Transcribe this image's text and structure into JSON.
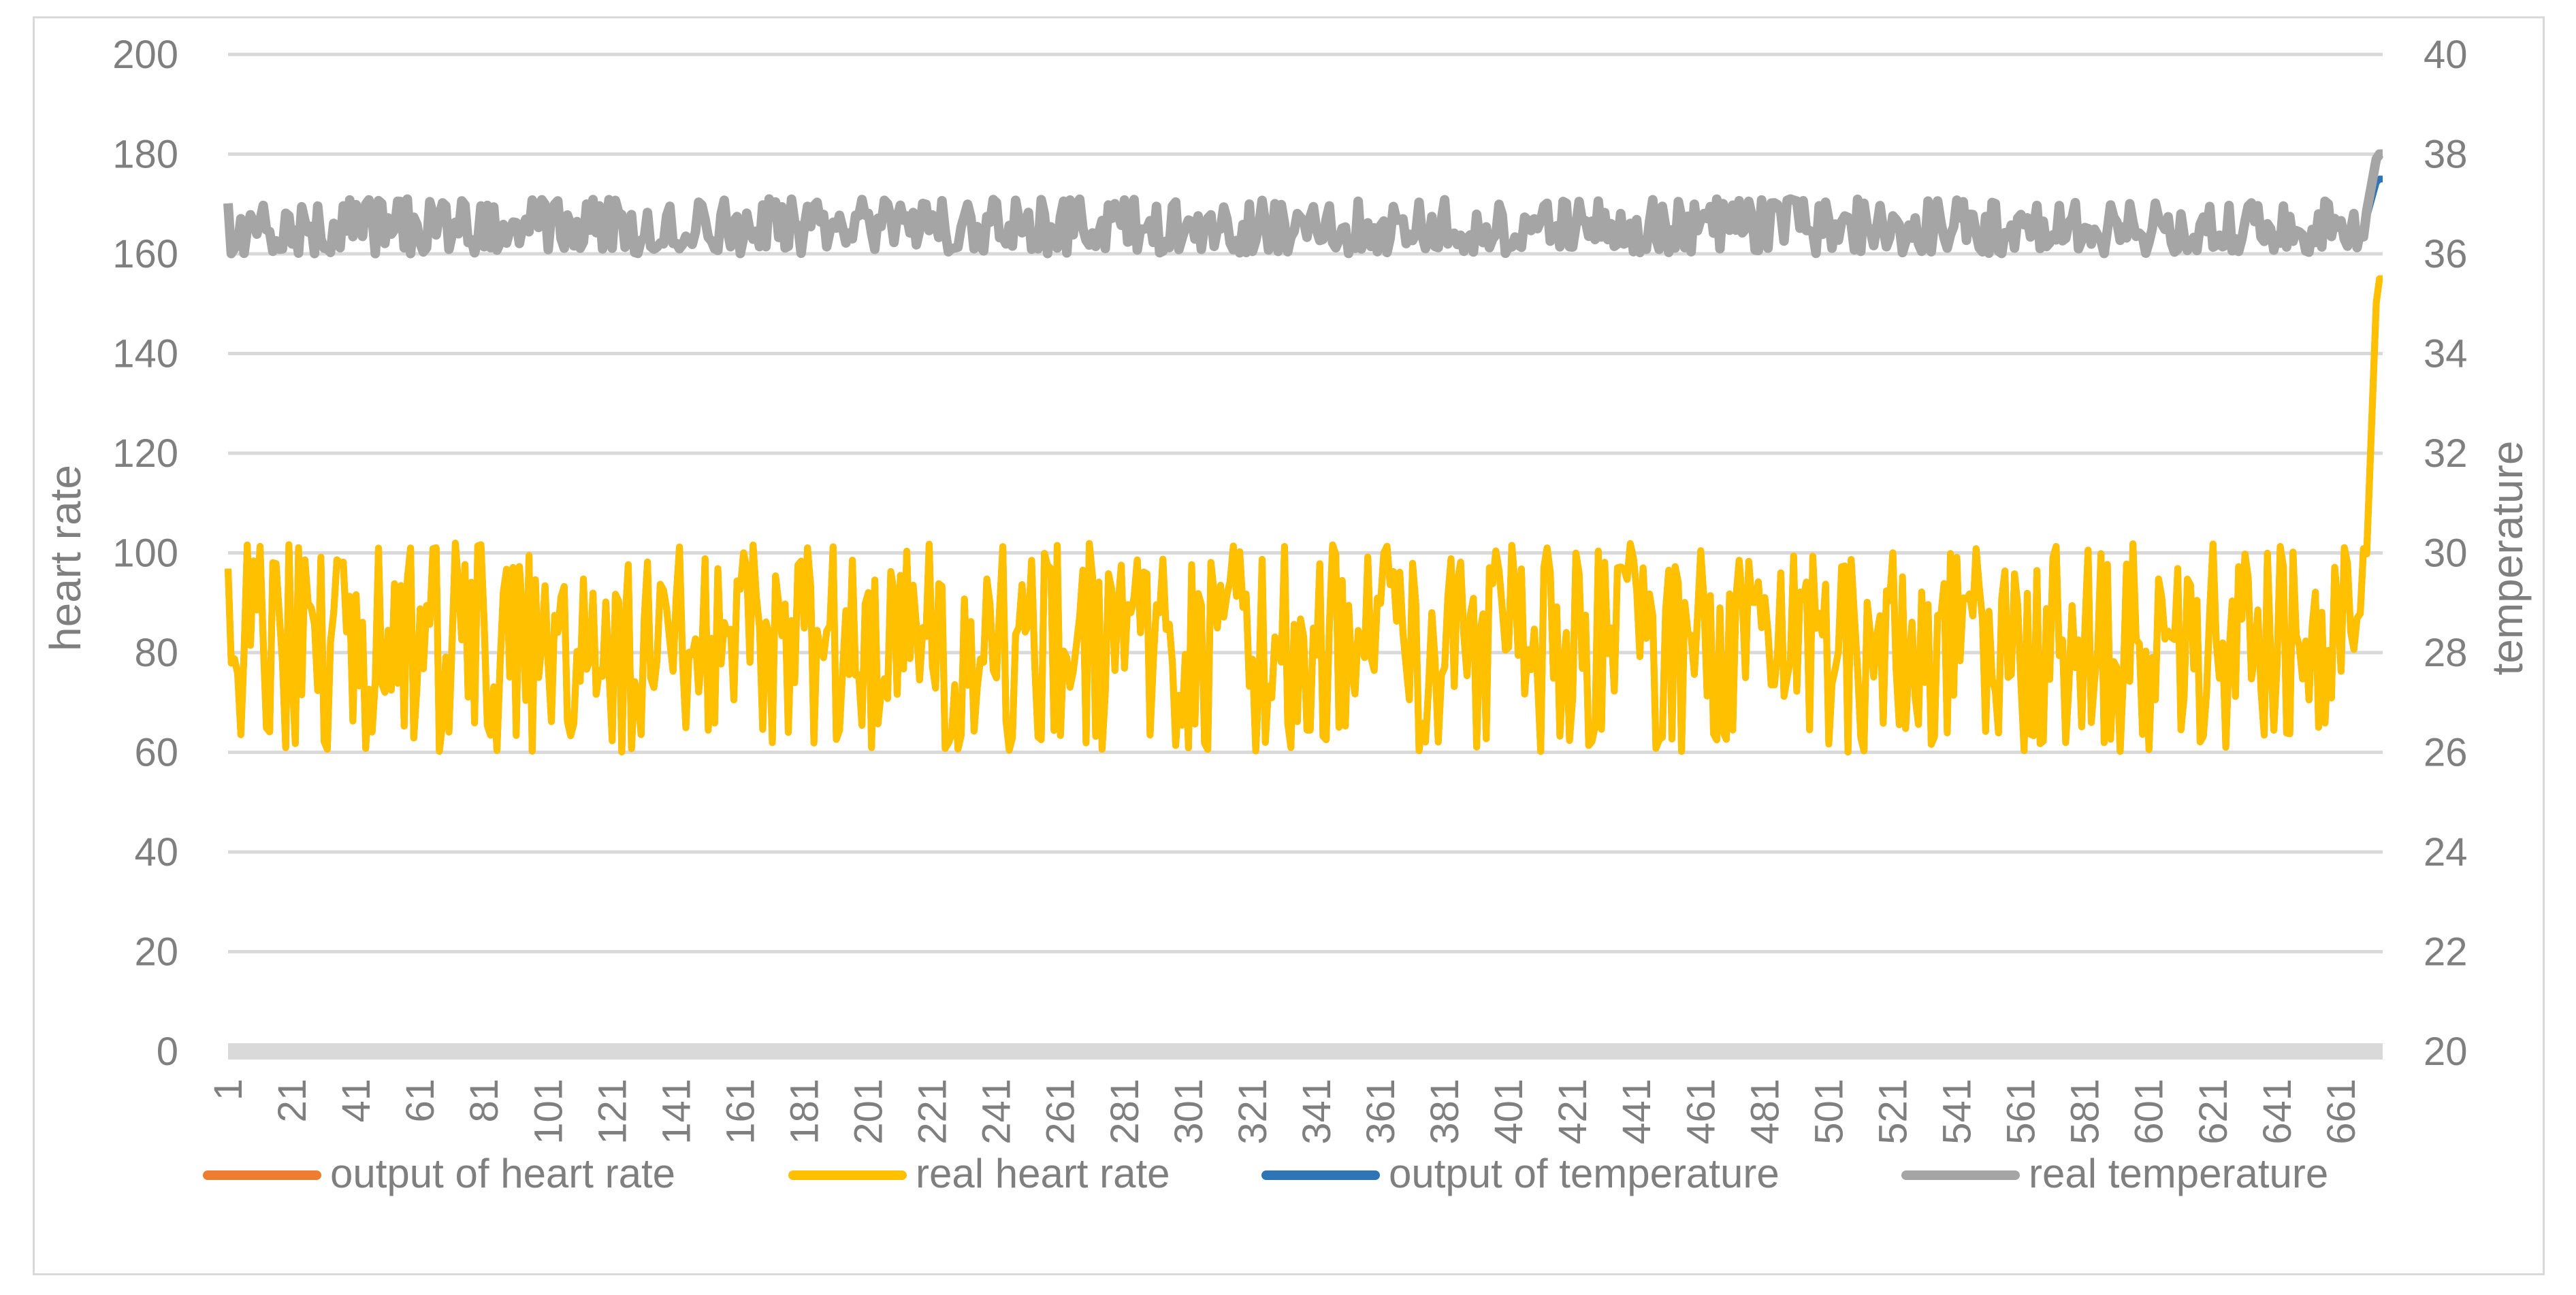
{
  "chart_data": {
    "type": "line",
    "title": "",
    "xlabel": "",
    "ylabel": "heart rate",
    "y2label": "temperature",
    "xlim": [
      1,
      674
    ],
    "ylim": [
      0,
      200
    ],
    "y2lim": [
      20,
      40
    ],
    "yticks": [
      "0",
      "20",
      "40",
      "60",
      "80",
      "100",
      "120",
      "140",
      "160",
      "180",
      "200"
    ],
    "y2ticks": [
      "20",
      "22",
      "24",
      "26",
      "28",
      "30",
      "32",
      "34",
      "36",
      "38",
      "40"
    ],
    "xticks": [
      "1",
      "21",
      "41",
      "61",
      "81",
      "101",
      "121",
      "141",
      "161",
      "181",
      "201",
      "221",
      "241",
      "261",
      "281",
      "301",
      "321",
      "341",
      "361",
      "381",
      "401",
      "421",
      "441",
      "461",
      "481",
      "501",
      "521",
      "541",
      "561",
      "581",
      "601",
      "621",
      "641",
      "661"
    ],
    "grid": true,
    "legend_position": "bottom",
    "series": [
      {
        "name": "output of heart rate",
        "axis": "left",
        "color": "#ed7d31",
        "baseline": 83,
        "noise_min": 60,
        "noise_max": 102,
        "end_value": 155,
        "note": "overlaps real heart rate"
      },
      {
        "name": "real heart rate",
        "axis": "left",
        "color": "#ffc000",
        "baseline": 83,
        "noise_min": 60,
        "noise_max": 102,
        "end_value": 155
      },
      {
        "name": "output of temperature",
        "axis": "right",
        "color": "#2e75b6",
        "baseline": 36.5,
        "noise_min": 36.0,
        "noise_max": 37.1,
        "end_value": 37.5
      },
      {
        "name": "real temperature",
        "axis": "right",
        "color": "#a5a5a5",
        "baseline": 36.5,
        "noise_min": 36.0,
        "noise_max": 37.1,
        "end_value": 38.0
      }
    ]
  }
}
